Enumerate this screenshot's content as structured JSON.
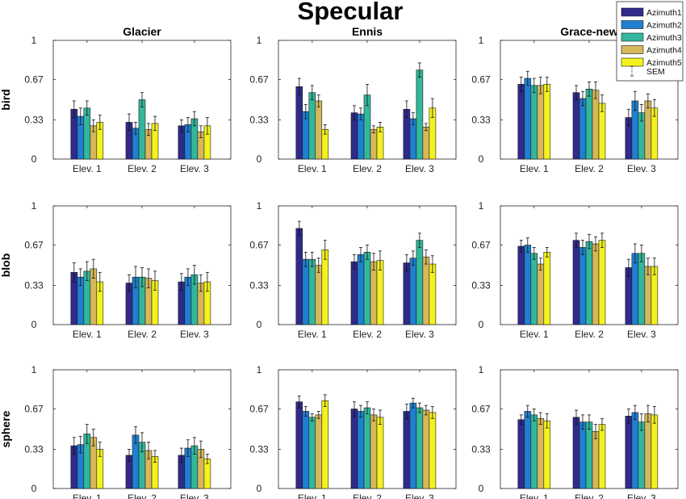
{
  "title": "Specular",
  "columns": [
    "Glacier",
    "Ennis",
    "Grace-new"
  ],
  "rows": [
    "bird",
    "blob",
    "sphere"
  ],
  "legend": {
    "series": [
      "Azimuth1",
      "Azimuth2",
      "Azimuth3",
      "Azimuth4",
      "Azimuth5"
    ],
    "sem_label": "SEM"
  },
  "colors": [
    "#2f2a8c",
    "#1f80d0",
    "#33b79c",
    "#d6b85a",
    "#f4f21e"
  ],
  "chart_data": [
    {
      "type": "bar",
      "row": "bird",
      "column": "Glacier",
      "categories": [
        "Elev. 1",
        "Elev. 2",
        "Elev. 3"
      ],
      "ylim": [
        0,
        1
      ],
      "yticks": [
        "0",
        "0.33",
        "0.67",
        "1"
      ],
      "series": [
        {
          "name": "Azimuth1",
          "values": [
            0.42,
            0.31,
            0.28
          ],
          "sem": [
            0.07,
            0.07,
            0.05
          ]
        },
        {
          "name": "Azimuth2",
          "values": [
            0.36,
            0.26,
            0.29
          ],
          "sem": [
            0.07,
            0.05,
            0.06
          ]
        },
        {
          "name": "Azimuth3",
          "values": [
            0.43,
            0.5,
            0.34
          ],
          "sem": [
            0.06,
            0.06,
            0.06
          ]
        },
        {
          "name": "Azimuth4",
          "values": [
            0.28,
            0.25,
            0.23
          ],
          "sem": [
            0.05,
            0.05,
            0.05
          ]
        },
        {
          "name": "Azimuth5",
          "values": [
            0.31,
            0.3,
            0.28
          ],
          "sem": [
            0.06,
            0.06,
            0.07
          ]
        }
      ]
    },
    {
      "type": "bar",
      "row": "bird",
      "column": "Ennis",
      "categories": [
        "Elev. 1",
        "Elev. 2",
        "Elev. 3"
      ],
      "ylim": [
        0,
        1
      ],
      "yticks": [
        "0",
        "0.33",
        "0.67",
        "1"
      ],
      "series": [
        {
          "name": "Azimuth1",
          "values": [
            0.61,
            0.39,
            0.42
          ],
          "sem": [
            0.07,
            0.06,
            0.07
          ]
        },
        {
          "name": "Azimuth2",
          "values": [
            0.4,
            0.38,
            0.34
          ],
          "sem": [
            0.06,
            0.05,
            0.05
          ]
        },
        {
          "name": "Azimuth3",
          "values": [
            0.56,
            0.54,
            0.75
          ],
          "sem": [
            0.06,
            0.09,
            0.06
          ]
        },
        {
          "name": "Azimuth4",
          "values": [
            0.49,
            0.25,
            0.27
          ],
          "sem": [
            0.05,
            0.03,
            0.03
          ]
        },
        {
          "name": "Azimuth5",
          "values": [
            0.25,
            0.27,
            0.43
          ],
          "sem": [
            0.04,
            0.04,
            0.08
          ]
        }
      ]
    },
    {
      "type": "bar",
      "row": "bird",
      "column": "Grace-new",
      "categories": [
        "Elev. 1",
        "Elev. 2",
        "Elev. 3"
      ],
      "ylim": [
        0,
        1
      ],
      "yticks": [
        "0",
        "0.33",
        "0.67",
        "1"
      ],
      "series": [
        {
          "name": "Azimuth1",
          "values": [
            0.63,
            0.56,
            0.35
          ],
          "sem": [
            0.06,
            0.06,
            0.07
          ]
        },
        {
          "name": "Azimuth2",
          "values": [
            0.68,
            0.51,
            0.49
          ],
          "sem": [
            0.06,
            0.06,
            0.08
          ]
        },
        {
          "name": "Azimuth3",
          "values": [
            0.62,
            0.59,
            0.39
          ],
          "sem": [
            0.06,
            0.06,
            0.07
          ]
        },
        {
          "name": "Azimuth4",
          "values": [
            0.62,
            0.58,
            0.49
          ],
          "sem": [
            0.07,
            0.07,
            0.06
          ]
        },
        {
          "name": "Azimuth5",
          "values": [
            0.63,
            0.47,
            0.43
          ],
          "sem": [
            0.06,
            0.07,
            0.07
          ]
        }
      ]
    },
    {
      "type": "bar",
      "row": "blob",
      "column": "Glacier",
      "categories": [
        "Elev. 1",
        "Elev. 2",
        "Elev. 3"
      ],
      "ylim": [
        0,
        1
      ],
      "yticks": [
        "0",
        "0.33",
        "0.67",
        "1"
      ],
      "series": [
        {
          "name": "Azimuth1",
          "values": [
            0.44,
            0.35,
            0.36
          ],
          "sem": [
            0.08,
            0.07,
            0.07
          ]
        },
        {
          "name": "Azimuth2",
          "values": [
            0.4,
            0.4,
            0.4
          ],
          "sem": [
            0.07,
            0.09,
            0.07
          ]
        },
        {
          "name": "Azimuth3",
          "values": [
            0.45,
            0.4,
            0.42
          ],
          "sem": [
            0.08,
            0.08,
            0.08
          ]
        },
        {
          "name": "Azimuth4",
          "values": [
            0.47,
            0.39,
            0.35
          ],
          "sem": [
            0.08,
            0.08,
            0.07
          ]
        },
        {
          "name": "Azimuth5",
          "values": [
            0.36,
            0.37,
            0.36
          ],
          "sem": [
            0.08,
            0.08,
            0.08
          ]
        }
      ]
    },
    {
      "type": "bar",
      "row": "blob",
      "column": "Ennis",
      "categories": [
        "Elev. 1",
        "Elev. 2",
        "Elev. 3"
      ],
      "ylim": [
        0,
        1
      ],
      "yticks": [
        "0",
        "0.33",
        "0.67",
        "1"
      ],
      "series": [
        {
          "name": "Azimuth1",
          "values": [
            0.81,
            0.53,
            0.52
          ],
          "sem": [
            0.06,
            0.06,
            0.07
          ]
        },
        {
          "name": "Azimuth2",
          "values": [
            0.55,
            0.59,
            0.56
          ],
          "sem": [
            0.06,
            0.06,
            0.06
          ]
        },
        {
          "name": "Azimuth3",
          "values": [
            0.55,
            0.61,
            0.71
          ],
          "sem": [
            0.06,
            0.06,
            0.06
          ]
        },
        {
          "name": "Azimuth4",
          "values": [
            0.5,
            0.53,
            0.57
          ],
          "sem": [
            0.06,
            0.07,
            0.06
          ]
        },
        {
          "name": "Azimuth5",
          "values": [
            0.63,
            0.54,
            0.51
          ],
          "sem": [
            0.08,
            0.08,
            0.07
          ]
        }
      ]
    },
    {
      "type": "bar",
      "row": "blob",
      "column": "Grace-new",
      "categories": [
        "Elev. 1",
        "Elev. 2",
        "Elev. 3"
      ],
      "ylim": [
        0,
        1
      ],
      "yticks": [
        "0",
        "0.33",
        "0.67",
        "1"
      ],
      "series": [
        {
          "name": "Azimuth1",
          "values": [
            0.66,
            0.71,
            0.48
          ],
          "sem": [
            0.05,
            0.06,
            0.07
          ]
        },
        {
          "name": "Azimuth2",
          "values": [
            0.67,
            0.65,
            0.6
          ],
          "sem": [
            0.06,
            0.06,
            0.08
          ]
        },
        {
          "name": "Azimuth3",
          "values": [
            0.6,
            0.7,
            0.6
          ],
          "sem": [
            0.05,
            0.06,
            0.07
          ]
        },
        {
          "name": "Azimuth4",
          "values": [
            0.51,
            0.68,
            0.49
          ],
          "sem": [
            0.05,
            0.06,
            0.07
          ]
        },
        {
          "name": "Azimuth5",
          "values": [
            0.61,
            0.71,
            0.49
          ],
          "sem": [
            0.04,
            0.06,
            0.07
          ]
        }
      ]
    },
    {
      "type": "bar",
      "row": "sphere",
      "column": "Glacier",
      "categories": [
        "Elev. 1",
        "Elev. 2",
        "Elev. 3"
      ],
      "ylim": [
        0,
        1
      ],
      "yticks": [
        "0",
        "0.33",
        "0.67",
        "1"
      ],
      "series": [
        {
          "name": "Azimuth1",
          "values": [
            0.36,
            0.28,
            0.28
          ],
          "sem": [
            0.07,
            0.05,
            0.06
          ]
        },
        {
          "name": "Azimuth2",
          "values": [
            0.37,
            0.45,
            0.34
          ],
          "sem": [
            0.07,
            0.07,
            0.07
          ]
        },
        {
          "name": "Azimuth3",
          "values": [
            0.46,
            0.39,
            0.36
          ],
          "sem": [
            0.08,
            0.08,
            0.07
          ]
        },
        {
          "name": "Azimuth4",
          "values": [
            0.43,
            0.32,
            0.33
          ],
          "sem": [
            0.07,
            0.07,
            0.07
          ]
        },
        {
          "name": "Azimuth5",
          "values": [
            0.33,
            0.27,
            0.25
          ],
          "sem": [
            0.06,
            0.05,
            0.04
          ]
        }
      ]
    },
    {
      "type": "bar",
      "row": "sphere",
      "column": "Ennis",
      "categories": [
        "Elev. 1",
        "Elev. 2",
        "Elev. 3"
      ],
      "ylim": [
        0,
        1
      ],
      "yticks": [
        "0",
        "0.33",
        "0.67",
        "1"
      ],
      "series": [
        {
          "name": "Azimuth1",
          "values": [
            0.73,
            0.67,
            0.65
          ],
          "sem": [
            0.05,
            0.06,
            0.06
          ]
        },
        {
          "name": "Azimuth2",
          "values": [
            0.65,
            0.65,
            0.72
          ],
          "sem": [
            0.04,
            0.05,
            0.04
          ]
        },
        {
          "name": "Azimuth3",
          "values": [
            0.6,
            0.68,
            0.68
          ],
          "sem": [
            0.03,
            0.05,
            0.04
          ]
        },
        {
          "name": "Azimuth4",
          "values": [
            0.62,
            0.62,
            0.66
          ],
          "sem": [
            0.03,
            0.05,
            0.04
          ]
        },
        {
          "name": "Azimuth5",
          "values": [
            0.74,
            0.6,
            0.64
          ],
          "sem": [
            0.05,
            0.06,
            0.05
          ]
        }
      ]
    },
    {
      "type": "bar",
      "row": "sphere",
      "column": "Grace-new",
      "categories": [
        "Elev. 1",
        "Elev. 2",
        "Elev. 3"
      ],
      "ylim": [
        0,
        1
      ],
      "yticks": [
        "0",
        "0.33",
        "0.67",
        "1"
      ],
      "series": [
        {
          "name": "Azimuth1",
          "values": [
            0.58,
            0.6,
            0.61
          ],
          "sem": [
            0.04,
            0.06,
            0.06
          ]
        },
        {
          "name": "Azimuth2",
          "values": [
            0.65,
            0.56,
            0.64
          ],
          "sem": [
            0.05,
            0.06,
            0.06
          ]
        },
        {
          "name": "Azimuth3",
          "values": [
            0.62,
            0.56,
            0.56
          ],
          "sem": [
            0.05,
            0.06,
            0.07
          ]
        },
        {
          "name": "Azimuth4",
          "values": [
            0.59,
            0.48,
            0.63
          ],
          "sem": [
            0.05,
            0.06,
            0.07
          ]
        },
        {
          "name": "Azimuth5",
          "values": [
            0.57,
            0.54,
            0.62
          ],
          "sem": [
            0.06,
            0.05,
            0.07
          ]
        }
      ]
    }
  ]
}
